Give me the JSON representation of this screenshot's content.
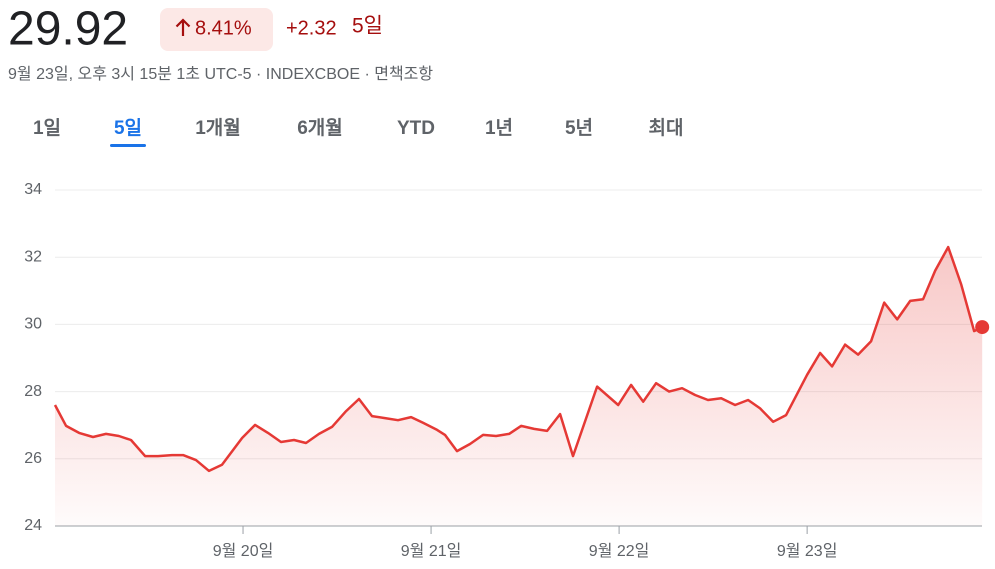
{
  "header": {
    "price": "29.92",
    "change_percent": "8.41%",
    "change": "+2.32",
    "period": "5일",
    "subtitle": "9월 23일, 오후 3시 15분 1초 UTC-5 · INDEXCBOE · 면책조항"
  },
  "tabs": [
    "1일",
    "5일",
    "1개월",
    "6개월",
    "YTD",
    "1년",
    "5년",
    "최대"
  ],
  "selected_tab": 1,
  "chart_data": {
    "type": "area-line",
    "x": [
      19.0,
      19.059,
      19.128,
      19.202,
      19.271,
      19.34,
      19.404,
      19.479,
      19.548,
      19.622,
      19.681,
      19.75,
      19.819,
      19.888,
      19.995,
      20.064,
      20.133,
      20.202,
      20.271,
      20.335,
      20.404,
      20.473,
      20.548,
      20.617,
      20.686,
      20.755,
      20.824,
      20.894,
      20.957,
      21.032,
      21.074,
      21.138,
      21.207,
      21.277,
      21.346,
      21.415,
      21.479,
      21.548,
      21.617,
      21.686,
      21.755,
      21.883,
      21.995,
      22.064,
      22.128,
      22.197,
      22.266,
      22.335,
      22.404,
      22.473,
      22.543,
      22.617,
      22.686,
      22.75,
      22.819,
      22.888,
      23.0,
      23.069,
      23.133,
      23.202,
      23.271,
      23.34,
      23.41,
      23.479,
      23.548,
      23.617,
      23.681,
      23.75,
      23.819,
      23.888,
      23.931
    ],
    "series": [
      {
        "color": "#e53935",
        "values": [
          27.6,
          26.98,
          26.77,
          26.65,
          26.74,
          26.68,
          26.56,
          26.08,
          26.08,
          26.11,
          26.11,
          25.96,
          25.64,
          25.82,
          26.62,
          27.01,
          26.77,
          26.5,
          26.56,
          26.47,
          26.74,
          26.95,
          27.42,
          27.78,
          27.27,
          27.21,
          27.15,
          27.24,
          27.07,
          26.86,
          26.71,
          26.23,
          26.44,
          26.71,
          26.68,
          26.74,
          26.98,
          26.89,
          26.83,
          27.33,
          26.08,
          28.15,
          27.6,
          28.2,
          27.7,
          28.25,
          28.0,
          28.1,
          27.9,
          27.75,
          27.8,
          27.6,
          27.75,
          27.5,
          27.1,
          27.3,
          28.5,
          29.15,
          28.75,
          29.4,
          29.1,
          29.5,
          30.65,
          30.15,
          30.7,
          30.75,
          31.6,
          32.3,
          31.2,
          29.8,
          29.92
        ]
      }
    ],
    "xlim": [
      19,
      23.93
    ],
    "xticks": [
      {
        "value": 20,
        "label": "9월 20일"
      },
      {
        "value": 21,
        "label": "9월 21일"
      },
      {
        "value": 22,
        "label": "9월 22일"
      },
      {
        "value": 23,
        "label": "9월 23일"
      }
    ],
    "ylim": [
      24,
      34
    ],
    "yticks": [
      24,
      26,
      28,
      30,
      32,
      34
    ],
    "grid": true
  }
}
